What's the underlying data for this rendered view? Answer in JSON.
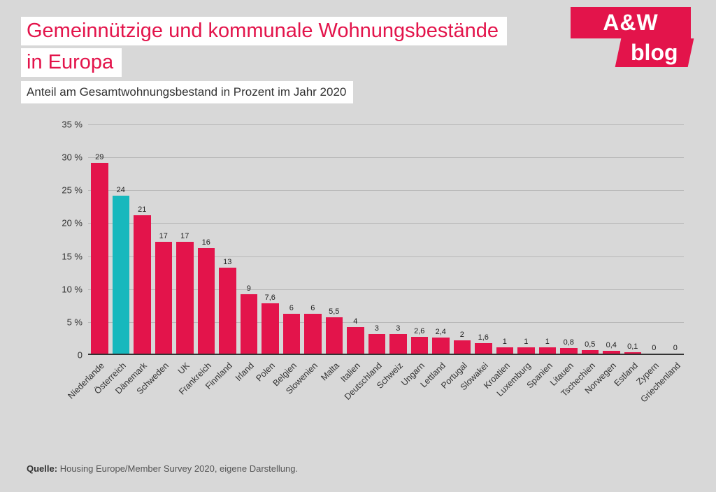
{
  "header": {
    "title_line1": "Gemeinnützige und kommunale Wohnungsbestände",
    "title_line2": "in Europa",
    "subtitle": "Anteil am Gesamtwohnungsbestand in Prozent im Jahr 2020"
  },
  "logo": {
    "top": "A&W",
    "bottom": "blog"
  },
  "chart": {
    "type": "bar",
    "ylim": [
      0,
      35
    ],
    "ytick_step": 5,
    "y_suffix": " %",
    "y_labels": [
      "0",
      "5 %",
      "10 %",
      "15 %",
      "20 %",
      "25 %",
      "30 %",
      "35 %"
    ],
    "grid_color": "#b8b8b8",
    "axis_color": "#333333",
    "default_bar_color": "#e3144b",
    "highlight_bar_color": "#17b8bd",
    "label_fontsize": 13,
    "value_fontsize": 11,
    "categories": [
      "Niederlande",
      "Österreich",
      "Dänemark",
      "Schweden",
      "UK",
      "Frankreich",
      "Finnland",
      "Irland",
      "Polen",
      "Belgien",
      "Slowenien",
      "Malta",
      "Italien",
      "Deutschland",
      "Schweiz",
      "Ungarn",
      "Lettland",
      "Portugal",
      "Slowakei",
      "Kroatien",
      "Luxemburg",
      "Spanien",
      "Litauen",
      "Tschechien",
      "Norwegen",
      "Estland",
      "Zypern",
      "Griechenland"
    ],
    "values": [
      29,
      24,
      21,
      17,
      17,
      16,
      13,
      9,
      7.6,
      6,
      6,
      5.5,
      4,
      3,
      3,
      2.6,
      2.4,
      2,
      1.6,
      1,
      1,
      1,
      0.8,
      0.5,
      0.4,
      0.1,
      0,
      0
    ],
    "display_values": [
      "29",
      "24",
      "21",
      "17",
      "17",
      "16",
      "13",
      "9",
      "7,6",
      "6",
      "6",
      "5,5",
      "4",
      "3",
      "3",
      "2,6",
      "2,4",
      "2",
      "1,6",
      "1",
      "1",
      "1",
      "0,8",
      "0,5",
      "0,4",
      "0,1",
      "0",
      "0"
    ],
    "highlight_index": 1
  },
  "source": {
    "label": "Quelle:",
    "text": "Housing Europe/Member Survey 2020, eigene Darstellung."
  }
}
